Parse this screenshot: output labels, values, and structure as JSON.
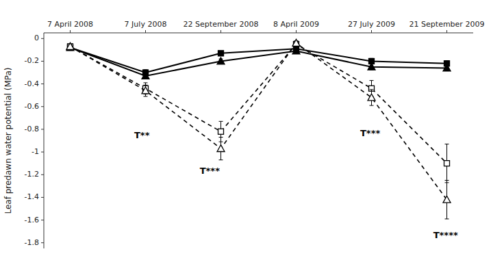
{
  "chart_data": {
    "type": "line",
    "ylabel": "Leaf predawn water potential (MPa)",
    "categories": [
      "7 April 2008",
      "7 July 2008",
      "22 September 2008",
      "8 April 2009",
      "27 July 2009",
      "21 September 2009"
    ],
    "series": [
      {
        "color": "#000000",
        "marker": "square",
        "line_style": "solid",
        "values": [
          -0.08,
          -0.3,
          -0.13,
          -0.09,
          -0.2,
          -0.22
        ],
        "errors": [
          0.02,
          0.025,
          0.02,
          0.02,
          0.025,
          0.025
        ]
      },
      {
        "color": "#000000",
        "marker": "triangle",
        "line_style": "solid",
        "values": [
          -0.08,
          -0.33,
          -0.2,
          -0.11,
          -0.25,
          -0.26
        ],
        "errors": [
          0.02,
          0.025,
          0.02,
          0.02,
          0.025,
          0.025
        ]
      },
      {
        "color": "#000000",
        "marker": "open-square",
        "line_style": "dashed",
        "values": [
          -0.07,
          -0.44,
          -0.82,
          -0.05,
          -0.44,
          -1.1
        ],
        "errors": [
          0.02,
          0.05,
          0.09,
          0.02,
          0.07,
          0.17
        ]
      },
      {
        "color": "#000000",
        "marker": "open-triangle",
        "line_style": "dashed",
        "values": [
          -0.07,
          -0.46,
          -0.97,
          -0.04,
          -0.52,
          -1.42
        ],
        "errors": [
          0.02,
          0.05,
          0.1,
          0.02,
          0.07,
          0.17
        ]
      }
    ],
    "annotations": [
      {
        "text": "T**",
        "x": 0.85,
        "y": -0.86
      },
      {
        "text": "T***",
        "x": 1.72,
        "y": -1.17
      },
      {
        "text": "T***",
        "x": 3.85,
        "y": -0.84
      },
      {
        "text": "T****",
        "x": 4.82,
        "y": -1.74
      }
    ],
    "ylim": [
      -1.85,
      0.05
    ],
    "yticks": [
      0,
      -0.2,
      -0.4,
      -0.6,
      -0.8,
      -1,
      -1.2,
      -1.4,
      -1.6,
      -1.8
    ],
    "grid": false
  }
}
